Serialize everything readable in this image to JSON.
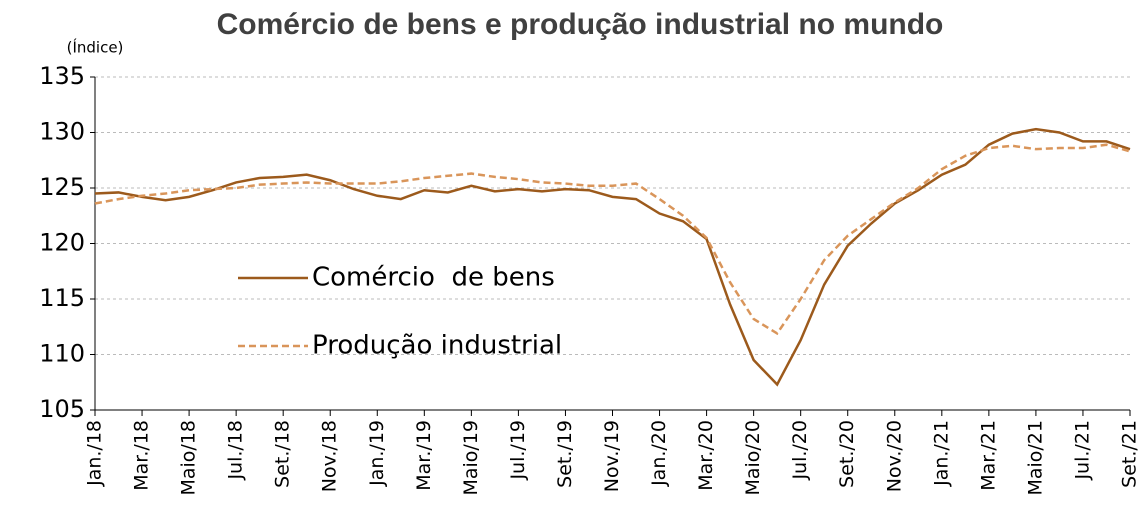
{
  "chart_data": {
    "type": "line",
    "title": "Comércio de bens e produção industrial no mundo",
    "y_label": "(Índice)",
    "categories": [
      "Jan./18",
      null,
      "Mar./18",
      null,
      "Maio/18",
      null,
      "Jul./18",
      null,
      "Set./18",
      null,
      "Nov./18",
      null,
      "Jan./19",
      null,
      "Mar./19",
      null,
      "Maio/19",
      null,
      "Jul./19",
      null,
      "Set./19",
      null,
      "Nov./19",
      null,
      "Jan./20",
      null,
      "Mar./20",
      null,
      "Maio/20",
      null,
      "Jul./20",
      null,
      "Set./20",
      null,
      "Nov./20",
      null,
      "Jan./21",
      null,
      "Mar./21",
      null,
      "Maio/21",
      null,
      "Jul./21",
      null,
      "Set./21"
    ],
    "series": [
      {
        "name": "Comércio  de bens",
        "color": "#9c5a1c",
        "dash": false,
        "values": [
          124.5,
          124.6,
          124.2,
          123.9,
          124.2,
          124.8,
          125.5,
          125.9,
          126.0,
          126.2,
          125.7,
          124.9,
          124.3,
          124.0,
          124.8,
          124.6,
          125.2,
          124.7,
          124.9,
          124.7,
          124.9,
          124.8,
          124.2,
          124.0,
          122.7,
          122.0,
          120.4,
          114.5,
          109.5,
          107.3,
          111.3,
          116.3,
          119.8,
          121.8,
          123.6,
          124.8,
          126.2,
          127.1,
          128.9,
          129.9,
          130.3,
          130.0,
          129.2,
          129.2,
          128.5
        ]
      },
      {
        "name": "Produção industrial",
        "color": "#d9955a",
        "dash": true,
        "values": [
          123.6,
          124.0,
          124.3,
          124.5,
          124.8,
          124.9,
          125.0,
          125.3,
          125.4,
          125.5,
          125.4,
          125.4,
          125.4,
          125.6,
          125.9,
          126.1,
          126.3,
          126.0,
          125.8,
          125.5,
          125.4,
          125.2,
          125.2,
          125.4,
          124.0,
          122.5,
          120.5,
          116.5,
          113.2,
          111.9,
          115.0,
          118.5,
          120.7,
          122.2,
          123.7,
          125.0,
          126.7,
          127.9,
          128.6,
          128.8,
          128.5,
          128.6,
          128.6,
          128.9,
          128.3
        ]
      }
    ],
    "ylim": [
      105,
      135
    ],
    "yticks": [
      105,
      110,
      115,
      120,
      125,
      130,
      135
    ],
    "grid": true,
    "legend": "center-left"
  }
}
